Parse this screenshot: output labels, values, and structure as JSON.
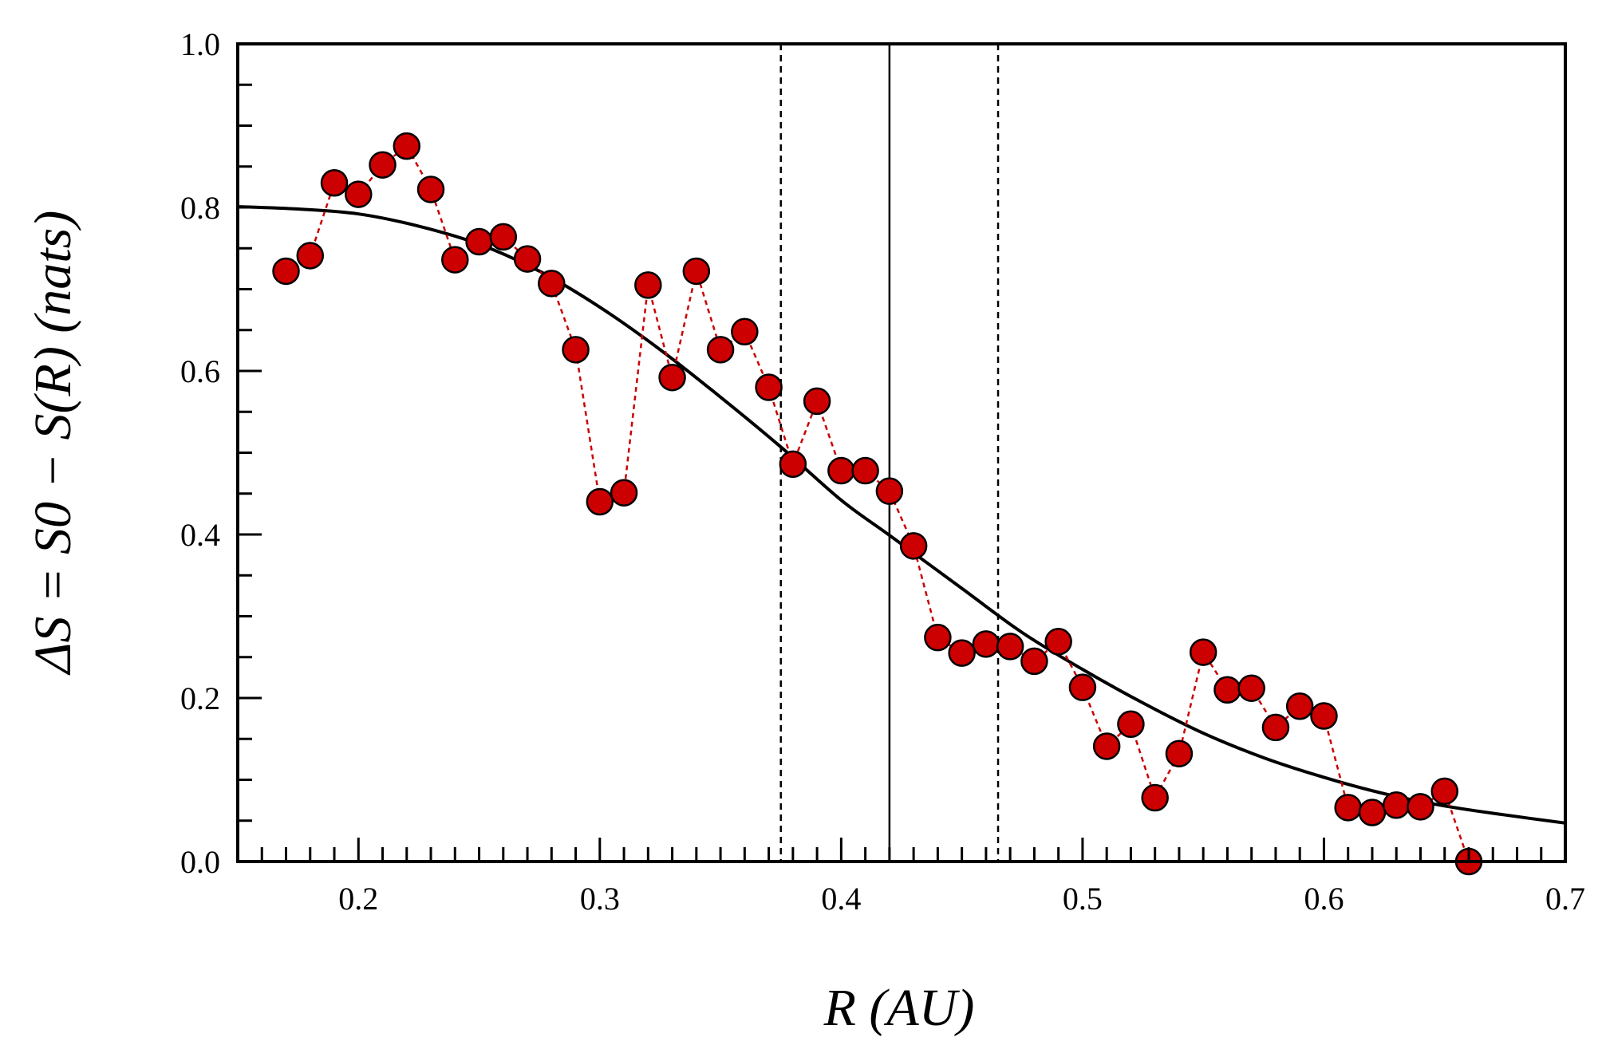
{
  "chart_data": {
    "type": "scatter",
    "title": "",
    "xlabel": "R (AU)",
    "ylabel": "ΔS = S0 − S(R) (nats)",
    "xlim": [
      0.15,
      0.7
    ],
    "ylim": [
      0.0,
      1.0
    ],
    "x_ticks": [
      "0.2",
      "0.3",
      "0.4",
      "0.5",
      "0.6",
      "0.7"
    ],
    "y_ticks": [
      "0.0",
      "0.2",
      "0.4",
      "0.6",
      "0.8",
      "1.0"
    ],
    "grid": false,
    "series": [
      {
        "name": "data",
        "style": "markers connected by dashed line",
        "color": "#cc0000",
        "x": [
          0.17,
          0.18,
          0.19,
          0.2,
          0.21,
          0.22,
          0.23,
          0.24,
          0.25,
          0.26,
          0.27,
          0.28,
          0.29,
          0.3,
          0.31,
          0.32,
          0.33,
          0.34,
          0.35,
          0.36,
          0.37,
          0.38,
          0.39,
          0.4,
          0.41,
          0.42,
          0.43,
          0.44,
          0.45,
          0.46,
          0.47,
          0.48,
          0.49,
          0.5,
          0.51,
          0.52,
          0.53,
          0.54,
          0.55,
          0.56,
          0.57,
          0.58,
          0.59,
          0.6,
          0.61,
          0.62,
          0.63,
          0.64,
          0.65,
          0.66
        ],
        "y": [
          0.722,
          0.741,
          0.83,
          0.816,
          0.852,
          0.875,
          0.822,
          0.736,
          0.758,
          0.764,
          0.737,
          0.707,
          0.626,
          0.44,
          0.451,
          0.705,
          0.592,
          0.722,
          0.626,
          0.648,
          0.58,
          0.486,
          0.563,
          0.478,
          0.478,
          0.453,
          0.386,
          0.274,
          0.255,
          0.266,
          0.263,
          0.245,
          0.269,
          0.213,
          0.141,
          0.168,
          0.078,
          0.132,
          0.256,
          0.21,
          0.212,
          0.164,
          0.19,
          0.178,
          0.066,
          0.06,
          0.069,
          0.067,
          0.086,
          0.0
        ]
      },
      {
        "name": "fit",
        "style": "solid curve",
        "color": "#000000",
        "x": [
          0.15,
          0.175,
          0.2,
          0.225,
          0.25,
          0.275,
          0.3,
          0.325,
          0.35,
          0.375,
          0.4,
          0.42,
          0.45,
          0.475,
          0.5,
          0.525,
          0.55,
          0.575,
          0.6,
          0.625,
          0.65,
          0.675,
          0.7
        ],
        "y": [
          0.801,
          0.798,
          0.792,
          0.777,
          0.755,
          0.722,
          0.678,
          0.626,
          0.568,
          0.507,
          0.442,
          0.399,
          0.334,
          0.28,
          0.235,
          0.194,
          0.157,
          0.127,
          0.103,
          0.083,
          0.068,
          0.057,
          0.047
        ]
      }
    ],
    "vertical_lines": [
      {
        "x": 0.375,
        "style": "dashed"
      },
      {
        "x": 0.42,
        "style": "solid"
      },
      {
        "x": 0.465,
        "style": "dashed"
      }
    ]
  }
}
